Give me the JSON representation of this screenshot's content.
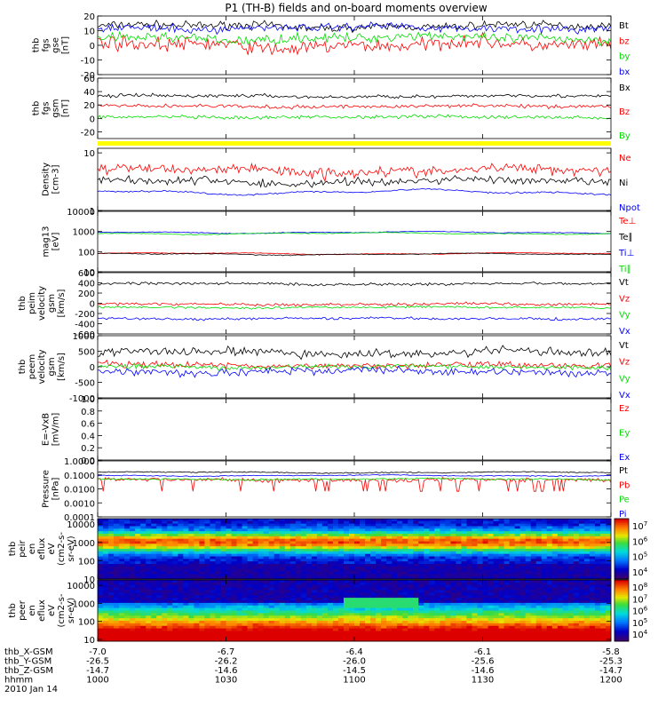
{
  "title": "P1 (TH-B) fields and on-board moments overview",
  "colors": {
    "black": "#000000",
    "red": "#ff0000",
    "green": "#00dd00",
    "blue": "#0000ff",
    "yellow": "#ffff00"
  },
  "chart_data": [
    {
      "id": "fgs_gse",
      "type": "line",
      "ylabel": [
        "thb",
        "fgs",
        "gse",
        "[nT]"
      ],
      "yticks": [
        "20",
        "10",
        "0",
        "-10",
        "-20"
      ],
      "ylim": [
        -20,
        20
      ],
      "series": [
        {
          "name": "Bt",
          "color": "black",
          "level": 13,
          "noise": 4
        },
        {
          "name": "bz",
          "color": "red",
          "level": 0,
          "noise": 7
        },
        {
          "name": "by",
          "color": "green",
          "level": 5,
          "noise": 5
        },
        {
          "name": "bx",
          "color": "blue",
          "level": 12,
          "noise": 4
        }
      ]
    },
    {
      "id": "fgs_gsm",
      "type": "line",
      "ylabel": [
        "thb",
        "fgs",
        "gsm",
        "[nT]"
      ],
      "yticks": [
        "60",
        "40",
        "20",
        "0",
        "-20"
      ],
      "ylim": [
        -30,
        60
      ],
      "series": [
        {
          "name": "Bx",
          "color": "black",
          "level": 33,
          "noise": 4
        },
        {
          "name": "Bz",
          "color": "red",
          "level": 18,
          "noise": 4
        },
        {
          "name": "By",
          "color": "green",
          "level": 2,
          "noise": 4
        }
      ]
    },
    {
      "id": "density",
      "type": "line",
      "ylabel": [
        "Density",
        "[cm-3]"
      ],
      "yticks": [
        "10",
        "1"
      ],
      "ylim": [
        1,
        12
      ],
      "log": true,
      "series": [
        {
          "name": "Ne",
          "color": "red",
          "level": 5,
          "noise": 1.5
        },
        {
          "name": "Ni",
          "color": "black",
          "level": 3.2,
          "noise": 0.8
        },
        {
          "name": "Npot",
          "color": "blue",
          "level": 2.1,
          "noise": 0.1
        }
      ]
    },
    {
      "id": "temp",
      "type": "line",
      "ylabel": [
        "mag13",
        "[eV]"
      ],
      "yticks": [
        "10000",
        "1000",
        "100",
        "10"
      ],
      "ylim": [
        10,
        10000
      ],
      "log": true,
      "series": [
        {
          "name": "Te⊥",
          "color": "red",
          "level": 80,
          "noise": 5
        },
        {
          "name": "Te∥",
          "color": "black",
          "level": 75,
          "noise": 5
        },
        {
          "name": "Ti⊥",
          "color": "blue",
          "level": 900,
          "noise": 60
        },
        {
          "name": "Ti∥",
          "color": "green",
          "level": 800,
          "noise": 50
        }
      ]
    },
    {
      "id": "peim_velocity",
      "type": "line",
      "ylabel": [
        "thb",
        "peim",
        "velocity",
        "gsm",
        "[km/s]"
      ],
      "yticks": [
        "600",
        "400",
        "200",
        "0",
        "-200",
        "-400",
        "-600"
      ],
      "ylim": [
        -600,
        600
      ],
      "series": [
        {
          "name": "Vt",
          "color": "black",
          "level": 380,
          "noise": 40
        },
        {
          "name": "Vz",
          "color": "red",
          "level": -20,
          "noise": 40
        },
        {
          "name": "Vy",
          "color": "green",
          "level": -80,
          "noise": 30
        },
        {
          "name": "Vx",
          "color": "blue",
          "level": -300,
          "noise": 35
        }
      ]
    },
    {
      "id": "peem_velocity",
      "type": "line",
      "ylabel": [
        "thb",
        "peem",
        "velocity",
        "gsm",
        "[km/s]"
      ],
      "yticks": [
        "1000",
        "500",
        "0",
        "-500",
        "-1000"
      ],
      "ylim": [
        -1000,
        1000
      ],
      "series": [
        {
          "name": "Vt",
          "color": "black",
          "level": 450,
          "noise": 200
        },
        {
          "name": "Vz",
          "color": "red",
          "level": 50,
          "noise": 150
        },
        {
          "name": "Vy",
          "color": "green",
          "level": 0,
          "noise": 120
        },
        {
          "name": "Vx",
          "color": "blue",
          "level": -150,
          "noise": 180
        }
      ]
    },
    {
      "id": "efield",
      "type": "line",
      "ylabel": [
        "E=-VxB",
        "[mV/m]"
      ],
      "yticks": [
        "1.0",
        "0.8",
        "0.6",
        "0.4",
        "0.2",
        "0.0"
      ],
      "ylim": [
        0,
        1
      ],
      "series": [
        {
          "name": "Ez",
          "color": "red"
        },
        {
          "name": "Ey",
          "color": "green"
        },
        {
          "name": "Ex",
          "color": "blue"
        }
      ]
    },
    {
      "id": "pressure",
      "type": "line",
      "ylabel": [
        "Pressure",
        "[nPa]"
      ],
      "yticks": [
        "1.0000",
        "0.1000",
        "0.0100",
        "0.0010",
        "0.0001"
      ],
      "ylim": [
        0.0001,
        1
      ],
      "log": true,
      "series": [
        {
          "name": "Pt",
          "color": "black",
          "level": 0.15,
          "noise": 0.02
        },
        {
          "name": "Pb",
          "color": "red",
          "level": 0.045,
          "noise": 0.02
        },
        {
          "name": "Pe",
          "color": "green",
          "level": 0.05,
          "noise": 0.01
        },
        {
          "name": "Pi",
          "color": "blue",
          "level": 0.09,
          "noise": 0.01
        }
      ]
    },
    {
      "id": "peir_eflux",
      "type": "heatmap",
      "ylabel": [
        "thb",
        "peir",
        "en",
        "eflux",
        "eV",
        "(cm2-s-",
        "sr-eV)"
      ],
      "yticks": [
        "10000",
        "1000",
        "100",
        "10"
      ],
      "ylim": [
        10,
        20000
      ],
      "log": true,
      "colorbar": [
        "10^7",
        "10^6",
        "10^5",
        "10^4"
      ]
    },
    {
      "id": "peer_eflux",
      "type": "heatmap",
      "ylabel": [
        "thb",
        "peer",
        "en",
        "eflux",
        "eV",
        "(cm2-s-",
        "sr-eV)"
      ],
      "yticks": [
        "10000",
        "1000",
        "100",
        "10"
      ],
      "ylim": [
        8,
        20000
      ],
      "log": true,
      "colorbar": [
        "10^8",
        "10^7",
        "10^6",
        "10^5",
        "10^4"
      ]
    }
  ],
  "xaxis": {
    "labels": [
      "thb_X-GSM",
      "thb_Y-GSM",
      "thb_Z-GSM",
      "hhmm",
      "2010 Jan 14"
    ],
    "rows": [
      [
        "-7.0",
        "-6.7",
        "-6.4",
        "-6.1",
        "-5.8"
      ],
      [
        "-26.5",
        "-26.2",
        "-26.0",
        "-25.6",
        "-25.3"
      ],
      [
        "-14.7",
        "-14.6",
        "-14.5",
        "-14.6",
        "-14.7"
      ],
      [
        "1000",
        "1030",
        "1100",
        "1130",
        "1200"
      ]
    ]
  }
}
